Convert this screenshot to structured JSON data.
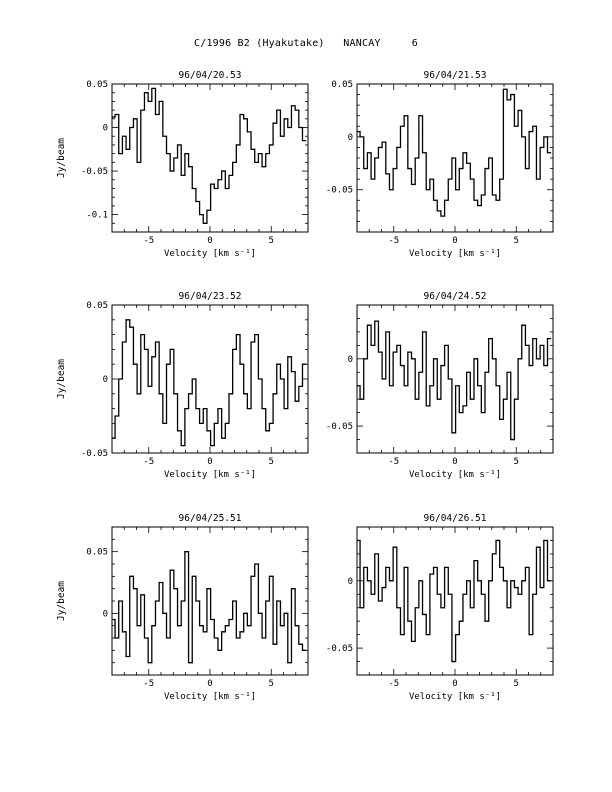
{
  "page": {
    "title": "C/1996 B2 (Hyakutake)   NANCAY     6"
  },
  "chart_data": [
    {
      "type": "line",
      "title": "96/04/20.53",
      "xlabel": "Velocity [km s⁻¹]",
      "ylabel": "Jy/beam",
      "xlim": [
        -8,
        8
      ],
      "ylim": [
        -0.12,
        0.05
      ],
      "xticks": [
        -5,
        0,
        5
      ],
      "yticks": [
        0.05,
        0,
        -0.05,
        -0.1
      ],
      "ytick_labels": [
        "0.05",
        "0",
        "-0.05",
        "-0.1"
      ],
      "x": [
        -7.9,
        -7.6,
        -7.3,
        -7.0,
        -6.7,
        -6.4,
        -6.1,
        -5.8,
        -5.5,
        -5.2,
        -4.9,
        -4.6,
        -4.3,
        -4.0,
        -3.7,
        -3.4,
        -3.1,
        -2.8,
        -2.5,
        -2.2,
        -1.9,
        -1.6,
        -1.3,
        -1.0,
        -0.7,
        -0.4,
        -0.1,
        0.2,
        0.5,
        0.8,
        1.1,
        1.4,
        1.7,
        2.0,
        2.3,
        2.6,
        2.9,
        3.2,
        3.5,
        3.8,
        4.1,
        4.4,
        4.7,
        5.0,
        5.3,
        5.6,
        5.9,
        6.2,
        6.5,
        6.8,
        7.1,
        7.4,
        7.7
      ],
      "values": [
        0.012,
        0.015,
        -0.03,
        -0.01,
        -0.025,
        0.0,
        0.01,
        -0.04,
        0.02,
        0.04,
        0.03,
        0.045,
        0.015,
        0.03,
        -0.01,
        -0.03,
        -0.05,
        -0.035,
        -0.02,
        -0.055,
        -0.03,
        -0.045,
        -0.07,
        -0.085,
        -0.1,
        -0.11,
        -0.095,
        -0.065,
        -0.07,
        -0.06,
        -0.05,
        -0.07,
        -0.055,
        -0.04,
        -0.02,
        0.015,
        0.01,
        -0.005,
        -0.025,
        -0.04,
        -0.03,
        -0.045,
        -0.03,
        -0.02,
        0.005,
        0.02,
        -0.01,
        0.01,
        0.0,
        0.025,
        0.02,
        0.0,
        -0.015
      ]
    },
    {
      "type": "line",
      "title": "96/04/21.53",
      "xlabel": "Velocity [km s⁻¹]",
      "ylabel": "",
      "xlim": [
        -8,
        8
      ],
      "ylim": [
        -0.09,
        0.05
      ],
      "xticks": [
        -5,
        0,
        5
      ],
      "yticks": [
        0.05,
        0,
        -0.05
      ],
      "ytick_labels": [
        "0.05",
        "0",
        "-0.05"
      ],
      "x": [
        -7.9,
        -7.6,
        -7.3,
        -7.0,
        -6.7,
        -6.4,
        -6.1,
        -5.8,
        -5.5,
        -5.2,
        -4.9,
        -4.6,
        -4.3,
        -4.0,
        -3.7,
        -3.4,
        -3.1,
        -2.8,
        -2.5,
        -2.2,
        -1.9,
        -1.6,
        -1.3,
        -1.0,
        -0.7,
        -0.4,
        -0.1,
        0.2,
        0.5,
        0.8,
        1.1,
        1.4,
        1.7,
        2.0,
        2.3,
        2.6,
        2.9,
        3.2,
        3.5,
        3.8,
        4.1,
        4.4,
        4.7,
        5.0,
        5.3,
        5.6,
        5.9,
        6.2,
        6.5,
        6.8,
        7.1,
        7.4,
        7.7
      ],
      "values": [
        0.005,
        0.0,
        -0.03,
        -0.015,
        -0.04,
        -0.02,
        -0.01,
        -0.005,
        -0.035,
        -0.05,
        -0.03,
        -0.01,
        0.01,
        0.02,
        -0.03,
        -0.045,
        -0.02,
        0.02,
        -0.015,
        -0.05,
        -0.04,
        -0.06,
        -0.07,
        -0.075,
        -0.06,
        -0.04,
        -0.02,
        -0.05,
        -0.03,
        -0.015,
        -0.025,
        -0.04,
        -0.06,
        -0.065,
        -0.055,
        -0.03,
        -0.02,
        -0.055,
        -0.06,
        -0.04,
        0.045,
        0.035,
        0.04,
        0.01,
        0.025,
        0.0,
        -0.03,
        0.005,
        0.01,
        -0.04,
        -0.01,
        0.0,
        -0.015
      ]
    },
    {
      "type": "line",
      "title": "96/04/23.52",
      "xlabel": "Velocity [km s⁻¹]",
      "ylabel": "Jy/beam",
      "xlim": [
        -8,
        8
      ],
      "ylim": [
        -0.05,
        0.05
      ],
      "xticks": [
        -5,
        0,
        5
      ],
      "yticks": [
        0.05,
        0,
        -0.05
      ],
      "ytick_labels": [
        "0.05",
        "0",
        "-0.05"
      ],
      "x": [
        -7.9,
        -7.6,
        -7.3,
        -7.0,
        -6.7,
        -6.4,
        -6.1,
        -5.8,
        -5.5,
        -5.2,
        -4.9,
        -4.6,
        -4.3,
        -4.0,
        -3.7,
        -3.4,
        -3.1,
        -2.8,
        -2.5,
        -2.2,
        -1.9,
        -1.6,
        -1.3,
        -1.0,
        -0.7,
        -0.4,
        -0.1,
        0.2,
        0.5,
        0.8,
        1.1,
        1.4,
        1.7,
        2.0,
        2.3,
        2.6,
        2.9,
        3.2,
        3.5,
        3.8,
        4.1,
        4.4,
        4.7,
        5.0,
        5.3,
        5.6,
        5.9,
        6.2,
        6.5,
        6.8,
        7.1,
        7.4,
        7.7
      ],
      "values": [
        -0.04,
        -0.025,
        0.0,
        0.025,
        0.04,
        0.035,
        0.01,
        -0.01,
        0.03,
        0.02,
        -0.005,
        0.015,
        0.025,
        -0.01,
        -0.03,
        0.01,
        0.02,
        -0.01,
        -0.035,
        -0.045,
        -0.02,
        -0.01,
        0.0,
        -0.02,
        -0.03,
        -0.02,
        -0.035,
        -0.045,
        -0.03,
        -0.02,
        -0.04,
        -0.03,
        -0.01,
        0.02,
        0.03,
        0.01,
        -0.01,
        -0.02,
        0.025,
        0.03,
        0.0,
        -0.02,
        -0.035,
        -0.03,
        -0.01,
        0.01,
        0.0,
        -0.02,
        0.015,
        0.005,
        -0.015,
        -0.005,
        0.01
      ]
    },
    {
      "type": "line",
      "title": "96/04/24.52",
      "xlabel": "Velocity [km s⁻¹]",
      "ylabel": "",
      "xlim": [
        -8,
        8
      ],
      "ylim": [
        -0.07,
        0.04
      ],
      "xticks": [
        -5,
        0,
        5
      ],
      "yticks": [
        0,
        -0.05
      ],
      "ytick_labels": [
        "0",
        "-0.05"
      ],
      "x": [
        -7.9,
        -7.6,
        -7.3,
        -7.0,
        -6.7,
        -6.4,
        -6.1,
        -5.8,
        -5.5,
        -5.2,
        -4.9,
        -4.6,
        -4.3,
        -4.0,
        -3.7,
        -3.4,
        -3.1,
        -2.8,
        -2.5,
        -2.2,
        -1.9,
        -1.6,
        -1.3,
        -1.0,
        -0.7,
        -0.4,
        -0.1,
        0.2,
        0.5,
        0.8,
        1.1,
        1.4,
        1.7,
        2.0,
        2.3,
        2.6,
        2.9,
        3.2,
        3.5,
        3.8,
        4.1,
        4.4,
        4.7,
        5.0,
        5.3,
        5.6,
        5.9,
        6.2,
        6.5,
        6.8,
        7.1,
        7.4,
        7.7
      ],
      "values": [
        -0.02,
        -0.03,
        0.0,
        0.025,
        0.01,
        0.028,
        0.005,
        -0.015,
        0.02,
        -0.02,
        0.005,
        0.01,
        -0.005,
        -0.02,
        0.005,
        0.0,
        -0.03,
        -0.01,
        0.02,
        -0.035,
        -0.02,
        0.0,
        -0.03,
        -0.005,
        0.01,
        -0.015,
        -0.055,
        -0.02,
        -0.04,
        -0.035,
        -0.01,
        -0.03,
        0.0,
        -0.02,
        -0.04,
        -0.01,
        0.015,
        0.0,
        -0.02,
        -0.045,
        -0.03,
        -0.01,
        -0.06,
        -0.03,
        0.0,
        0.025,
        0.01,
        -0.005,
        0.015,
        0.0,
        0.01,
        -0.005,
        0.015
      ]
    },
    {
      "type": "line",
      "title": "96/04/25.51",
      "xlabel": "Velocity [km s⁻¹]",
      "ylabel": "Jy/beam",
      "xlim": [
        -8,
        8
      ],
      "ylim": [
        -0.05,
        0.07
      ],
      "xticks": [
        -5,
        0,
        5
      ],
      "yticks": [
        0.05,
        0
      ],
      "ytick_labels": [
        "0.05",
        "0"
      ],
      "x": [
        -7.9,
        -7.6,
        -7.3,
        -7.0,
        -6.7,
        -6.4,
        -6.1,
        -5.8,
        -5.5,
        -5.2,
        -4.9,
        -4.6,
        -4.3,
        -4.0,
        -3.7,
        -3.4,
        -3.1,
        -2.8,
        -2.5,
        -2.2,
        -1.9,
        -1.6,
        -1.3,
        -1.0,
        -0.7,
        -0.4,
        -0.1,
        0.2,
        0.5,
        0.8,
        1.1,
        1.4,
        1.7,
        2.0,
        2.3,
        2.6,
        2.9,
        3.2,
        3.5,
        3.8,
        4.1,
        4.4,
        4.7,
        5.0,
        5.3,
        5.6,
        5.9,
        6.2,
        6.5,
        6.8,
        7.1,
        7.4,
        7.7
      ],
      "values": [
        -0.005,
        -0.02,
        0.01,
        -0.015,
        -0.035,
        0.03,
        0.02,
        -0.01,
        0.015,
        -0.02,
        -0.04,
        -0.01,
        0.01,
        0.025,
        0.0,
        -0.02,
        0.035,
        0.02,
        -0.01,
        0.01,
        0.05,
        -0.04,
        0.03,
        0.01,
        -0.01,
        -0.015,
        0.02,
        -0.005,
        -0.02,
        -0.03,
        -0.015,
        -0.01,
        -0.005,
        0.01,
        -0.02,
        -0.015,
        0.0,
        -0.01,
        0.03,
        0.04,
        0.0,
        -0.02,
        0.01,
        0.03,
        -0.025,
        0.01,
        -0.01,
        0.0,
        -0.04,
        0.02,
        -0.01,
        -0.025,
        -0.03
      ]
    },
    {
      "type": "line",
      "title": "96/04/26.51",
      "xlabel": "Velocity [km s⁻¹]",
      "ylabel": "",
      "xlim": [
        -8,
        8
      ],
      "ylim": [
        -0.07,
        0.04
      ],
      "xticks": [
        -5,
        0,
        5
      ],
      "yticks": [
        0,
        -0.05
      ],
      "ytick_labels": [
        "0",
        "-0.05"
      ],
      "x": [
        -7.9,
        -7.6,
        -7.3,
        -7.0,
        -6.7,
        -6.4,
        -6.1,
        -5.8,
        -5.5,
        -5.2,
        -4.9,
        -4.6,
        -4.3,
        -4.0,
        -3.7,
        -3.4,
        -3.1,
        -2.8,
        -2.5,
        -2.2,
        -1.9,
        -1.6,
        -1.3,
        -1.0,
        -0.7,
        -0.4,
        -0.1,
        0.2,
        0.5,
        0.8,
        1.1,
        1.4,
        1.7,
        2.0,
        2.3,
        2.6,
        2.9,
        3.2,
        3.5,
        3.8,
        4.1,
        4.4,
        4.7,
        5.0,
        5.3,
        5.6,
        5.9,
        6.2,
        6.5,
        6.8,
        7.1,
        7.4,
        7.7
      ],
      "values": [
        0.03,
        -0.02,
        0.01,
        0.0,
        -0.01,
        0.02,
        -0.015,
        -0.005,
        0.01,
        0.0,
        0.025,
        -0.02,
        -0.04,
        0.01,
        -0.03,
        -0.045,
        -0.02,
        0.0,
        -0.025,
        -0.04,
        0.005,
        0.01,
        -0.01,
        -0.02,
        0.01,
        -0.01,
        -0.06,
        -0.04,
        -0.03,
        -0.01,
        0.0,
        -0.02,
        0.015,
        0.0,
        -0.01,
        -0.03,
        0.0,
        0.02,
        0.03,
        0.01,
        0.0,
        -0.02,
        0.0,
        -0.005,
        -0.01,
        0.0,
        0.01,
        -0.04,
        -0.01,
        0.025,
        -0.005,
        0.03,
        0.0
      ]
    }
  ]
}
